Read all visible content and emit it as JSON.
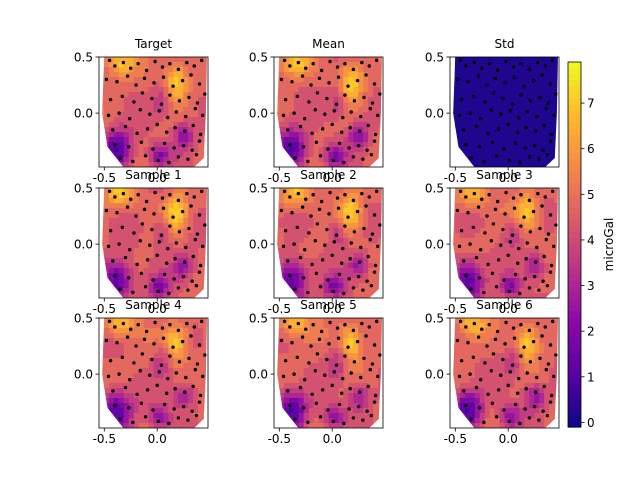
{
  "figure": {
    "colorbar": {
      "label": "microGal",
      "ticks": [
        0,
        1,
        2,
        3,
        4,
        5,
        6,
        7
      ],
      "range": [
        -0.1,
        7.9
      ],
      "colormap": "plasma"
    }
  },
  "chart_data": [
    {
      "type": "contour",
      "title": "Target",
      "xlim": [
        -0.55,
        0.48
      ],
      "ylim": [
        -0.48,
        0.5
      ],
      "x_ticks": [
        "-0.5",
        "0.0"
      ],
      "y_ticks": [
        "0.5",
        "0.0"
      ],
      "field": "sample"
    },
    {
      "type": "contour",
      "title": "Mean",
      "xlim": [
        -0.55,
        0.48
      ],
      "ylim": [
        -0.48,
        0.5
      ],
      "x_ticks": [
        "-0.5",
        "0.0"
      ],
      "y_ticks": [
        "0.5",
        "0.0"
      ],
      "field": "mean"
    },
    {
      "type": "contour",
      "title": "Std",
      "xlim": [
        -0.55,
        0.48
      ],
      "ylim": [
        -0.48,
        0.5
      ],
      "x_ticks": [
        "-0.5",
        "0.0"
      ],
      "y_ticks": [
        "0.5",
        "0.0"
      ],
      "field": "std"
    },
    {
      "type": "contour",
      "title": "Sample 1",
      "xlim": [
        -0.55,
        0.48
      ],
      "ylim": [
        -0.48,
        0.5
      ],
      "x_ticks": [
        "-0.5",
        "0.0"
      ],
      "y_ticks": [
        "0.5",
        "0.0"
      ],
      "field": "sample"
    },
    {
      "type": "contour",
      "title": "Sample 2",
      "xlim": [
        -0.55,
        0.48
      ],
      "ylim": [
        -0.48,
        0.5
      ],
      "x_ticks": [
        "-0.5",
        "0.0"
      ],
      "y_ticks": [
        "0.5",
        "0.0"
      ],
      "field": "sample"
    },
    {
      "type": "contour",
      "title": "Sample 3",
      "xlim": [
        -0.55,
        0.48
      ],
      "ylim": [
        -0.48,
        0.5
      ],
      "x_ticks": [
        "-0.5",
        "0.0"
      ],
      "y_ticks": [
        "0.5",
        "0.0"
      ],
      "field": "sample"
    },
    {
      "type": "contour",
      "title": "Sample 4",
      "xlim": [
        -0.55,
        0.48
      ],
      "ylim": [
        -0.48,
        0.5
      ],
      "x_ticks": [
        "-0.5",
        "0.0"
      ],
      "y_ticks": [
        "0.5",
        "0.0"
      ],
      "field": "sample"
    },
    {
      "type": "contour",
      "title": "Sample 5",
      "xlim": [
        -0.55,
        0.48
      ],
      "ylim": [
        -0.48,
        0.5
      ],
      "x_ticks": [
        "-0.5",
        "0.0"
      ],
      "y_ticks": [
        "0.5",
        "0.0"
      ],
      "field": "sample"
    },
    {
      "type": "contour",
      "title": "Sample 6",
      "xlim": [
        -0.55,
        0.48
      ],
      "ylim": [
        -0.48,
        0.5
      ],
      "x_ticks": [
        "-0.5",
        "0.0"
      ],
      "y_ticks": [
        "0.5",
        "0.0"
      ],
      "field": "sample"
    }
  ],
  "stations": {
    "x": [
      -0.45,
      -0.4,
      -0.32,
      -0.25,
      -0.18,
      -0.1,
      -0.02,
      0.05,
      0.12,
      0.2,
      0.28,
      0.35,
      0.42,
      -0.48,
      -0.38,
      -0.28,
      -0.2,
      -0.12,
      -0.03,
      0.06,
      0.15,
      0.24,
      0.32,
      0.4,
      -0.44,
      -0.33,
      -0.22,
      -0.14,
      -0.05,
      0.04,
      0.12,
      0.21,
      0.3,
      0.38,
      0.45,
      -0.46,
      -0.36,
      -0.26,
      -0.16,
      -0.07,
      0.02,
      0.1,
      0.18,
      0.27,
      0.36,
      0.43,
      -0.42,
      -0.3,
      -0.19,
      -0.09,
      0.0,
      0.09,
      0.17,
      0.26,
      0.34,
      0.41,
      -0.4,
      -0.27,
      -0.15,
      -0.04,
      0.07,
      0.16,
      0.25,
      0.33,
      0.4,
      -0.35,
      -0.23,
      -0.11,
      0.01,
      0.11,
      0.2,
      0.29,
      0.37
    ],
    "y": [
      0.47,
      0.42,
      0.45,
      0.4,
      0.44,
      0.38,
      0.46,
      0.41,
      0.44,
      0.39,
      0.45,
      0.42,
      0.47,
      0.3,
      0.28,
      0.33,
      0.25,
      0.31,
      0.27,
      0.32,
      0.24,
      0.29,
      0.34,
      0.26,
      0.12,
      0.15,
      0.1,
      0.18,
      0.13,
      0.08,
      0.16,
      0.11,
      0.14,
      0.09,
      0.17,
      -0.02,
      0.0,
      -0.05,
      0.03,
      -0.01,
      0.02,
      -0.04,
      0.01,
      -0.03,
      0.04,
      -0.02,
      -0.15,
      -0.12,
      -0.18,
      -0.14,
      -0.1,
      -0.17,
      -0.13,
      -0.16,
      -0.11,
      -0.19,
      -0.28,
      -0.3,
      -0.26,
      -0.32,
      -0.27,
      -0.31,
      -0.29,
      -0.33,
      -0.25,
      -0.4,
      -0.43,
      -0.38,
      -0.42,
      -0.44,
      -0.39,
      -0.41,
      -0.37
    ]
  }
}
